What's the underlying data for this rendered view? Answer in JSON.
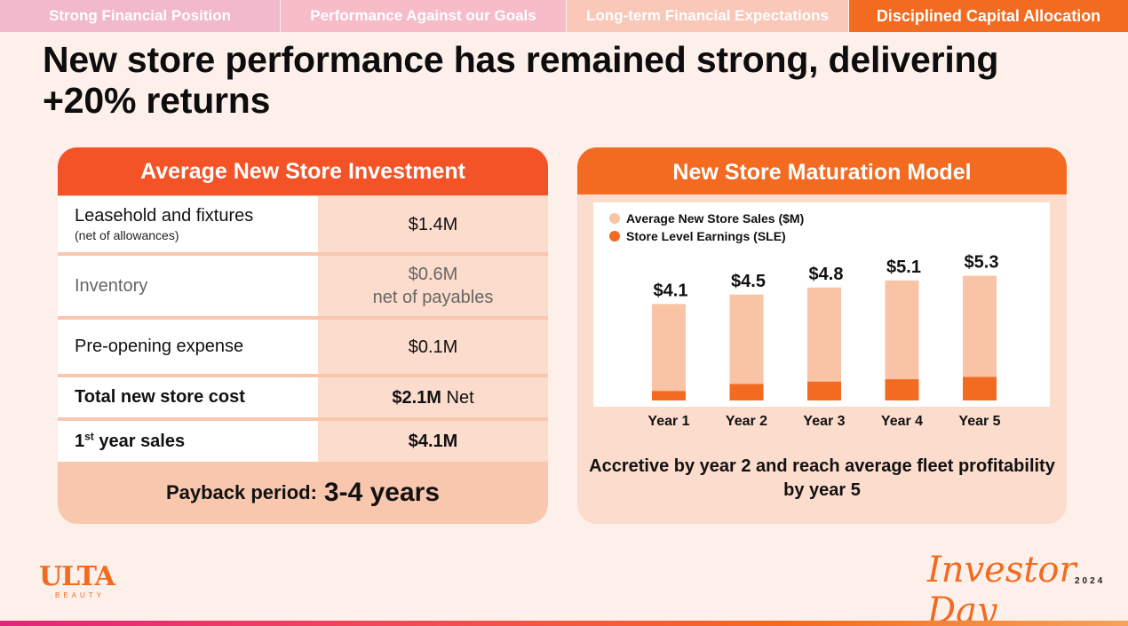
{
  "tabs": [
    {
      "label": "Strong Financial Position"
    },
    {
      "label": "Performance Against our Goals"
    },
    {
      "label": "Long-term Financial Expectations"
    },
    {
      "label": "Disciplined Capital Allocation"
    }
  ],
  "title": "New store performance has remained strong, delivering +20% returns",
  "investment": {
    "header": "Average New Store  Investment",
    "rows": [
      {
        "label": "Leasehold and fixtures",
        "sublabel": "(net of allowances)",
        "value": "$1.4M"
      },
      {
        "label": "Inventory",
        "value": "$0.6M",
        "value_line2": "net of payables"
      },
      {
        "label": "Pre-opening expense",
        "value": "$0.1M"
      },
      {
        "label": "Total new store cost",
        "value": "$2.1M",
        "value_suffix": " Net"
      },
      {
        "label_sup": "st",
        "label_base": "1",
        "label_rest": " year sales",
        "value": "$4.1M"
      }
    ],
    "payback_label": "Payback period:",
    "payback_value": "3-4 years"
  },
  "maturation": {
    "header": "New Store Maturation Model",
    "note": "Accretive by year 2 and reach average fleet profitability by year 5"
  },
  "chart_data": {
    "type": "bar",
    "categories": [
      "Year 1",
      "Year 2",
      "Year 3",
      "Year 4",
      "Year 5"
    ],
    "series": [
      {
        "name": "Average New Store Sales ($M)",
        "values": [
          4.1,
          4.5,
          4.8,
          5.1,
          5.3
        ],
        "color": "#f9c3a6"
      },
      {
        "name": "Store Level Earnings (SLE)",
        "values": [
          0.4,
          0.7,
          0.8,
          0.9,
          1.0
        ],
        "color": "#f26b21"
      }
    ],
    "data_labels": [
      "$4.1",
      "$4.5",
      "$4.8",
      "$5.1",
      "$5.3"
    ],
    "legend_position": "top-left",
    "grid": false
  },
  "footer": {
    "logo_text": "ULTA",
    "logo_sub": "BEAUTY",
    "event_name": "Investor Day",
    "event_year": "2024"
  }
}
